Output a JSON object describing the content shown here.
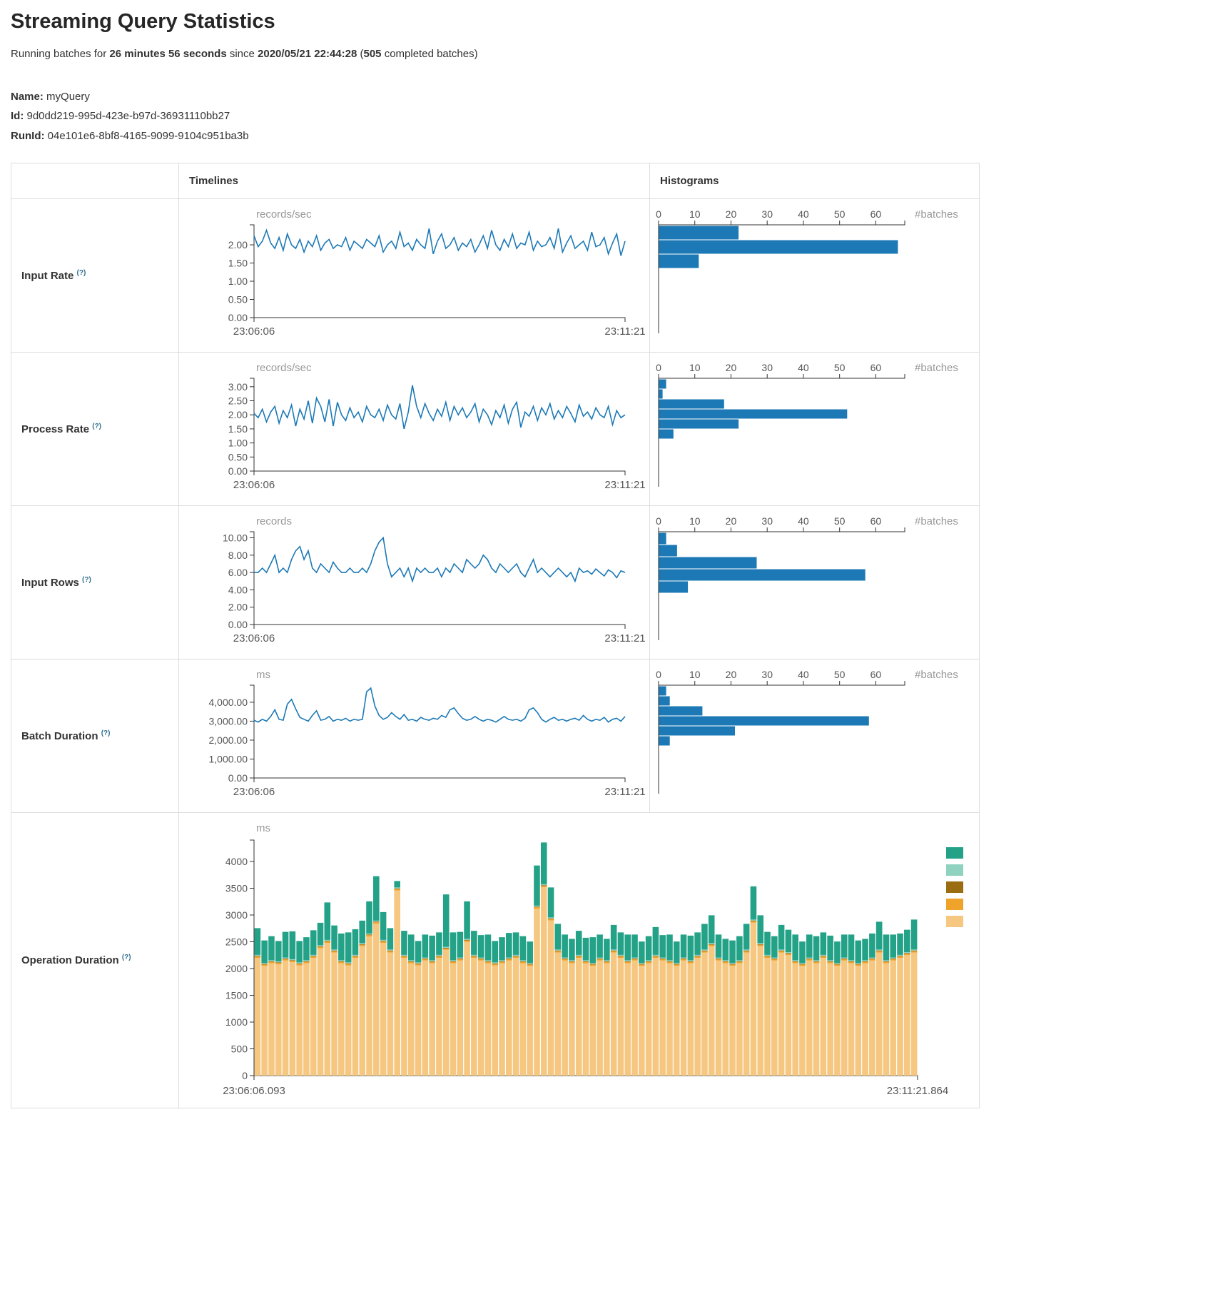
{
  "page": {
    "title": "Streaming Query Statistics",
    "running_prefix": "Running batches for ",
    "duration": "26 minutes 56 seconds",
    "since_text": " since ",
    "start_time": "2020/05/21 22:44:28",
    "paren_open": " (",
    "completed_batches": "505",
    "batches_suffix": " completed batches)",
    "name_label": "Name:",
    "name_value": " myQuery",
    "id_label": "Id:",
    "id_value": " 9d0dd219-995d-423e-b97d-36931110bb27",
    "runid_label": "RunId:",
    "runid_value": " 04e101e6-8bf8-4165-9099-9104c951ba3b"
  },
  "table": {
    "col_timelines": "Timelines",
    "col_histograms": "Histograms",
    "rows": [
      {
        "label": "Input Rate",
        "help": "(?)"
      },
      {
        "label": "Process Rate",
        "help": "(?)"
      },
      {
        "label": "Input Rows",
        "help": "(?)"
      },
      {
        "label": "Batch Duration",
        "help": "(?)"
      },
      {
        "label": "Operation Duration",
        "help": "(?)"
      }
    ]
  },
  "chart_data": {
    "input_rate": {
      "type": "line",
      "unit": "records/sec",
      "x_start": "23:06:06",
      "x_end": "23:11:21",
      "ymax": 2.55,
      "yticks": [
        0,
        0.5,
        1,
        1.5,
        2
      ],
      "ytick_labels": [
        "0.00",
        "0.50",
        "1.00",
        "1.50",
        "2.00"
      ],
      "color": "#1c79b6",
      "values": [
        2.25,
        1.95,
        2.1,
        2.4,
        2.05,
        1.9,
        2.2,
        1.85,
        2.3,
        2.0,
        1.9,
        2.15,
        1.8,
        2.1,
        1.95,
        2.25,
        1.85,
        2.05,
        2.15,
        1.9,
        2.0,
        1.95,
        2.2,
        1.85,
        2.1,
        2.0,
        1.9,
        2.15,
        2.05,
        1.95,
        2.25,
        1.8,
        2.0,
        2.1,
        1.9,
        2.35,
        1.95,
        2.05,
        1.85,
        2.15,
        2.0,
        1.9,
        2.45,
        1.75,
        2.1,
        2.3,
        1.9,
        2.0,
        2.2,
        1.85,
        2.05,
        1.95,
        2.15,
        1.8,
        2.0,
        2.25,
        1.9,
        2.4,
        2.0,
        1.85,
        2.15,
        1.95,
        2.3,
        1.9,
        2.05,
        2.0,
        2.35,
        1.85,
        2.1,
        1.95,
        2.0,
        2.2,
        1.9,
        2.45,
        1.8,
        2.05,
        2.25,
        1.9,
        2.0,
        2.1,
        1.85,
        2.35,
        1.95,
        2.0,
        2.2,
        1.75,
        2.05,
        2.3,
        1.7,
        2.1
      ]
    },
    "input_rate_hist": {
      "type": "histogram",
      "label": "#batches",
      "xticks": [
        0,
        10,
        20,
        30,
        40,
        50,
        60
      ],
      "xmax": 68,
      "color": "#1c79b6",
      "bins": [
        22,
        66,
        11
      ]
    },
    "process_rate": {
      "type": "line",
      "unit": "records/sec",
      "x_start": "23:06:06",
      "x_end": "23:11:21",
      "ymax": 3.3,
      "yticks": [
        0,
        0.5,
        1,
        1.5,
        2,
        2.5,
        3
      ],
      "ytick_labels": [
        "0.00",
        "0.50",
        "1.00",
        "1.50",
        "2.00",
        "2.50",
        "3.00"
      ],
      "color": "#1c79b6",
      "values": [
        2.05,
        1.9,
        2.2,
        1.75,
        2.1,
        2.3,
        1.7,
        2.15,
        1.9,
        2.35,
        1.6,
        2.2,
        1.85,
        2.5,
        1.7,
        2.6,
        2.3,
        1.75,
        2.55,
        1.6,
        2.45,
        2.0,
        1.8,
        2.25,
        1.9,
        2.1,
        1.75,
        2.3,
        2.0,
        1.9,
        2.2,
        1.8,
        2.35,
        2.0,
        1.85,
        2.4,
        1.5,
        2.1,
        3.05,
        2.3,
        1.9,
        2.4,
        2.05,
        1.8,
        2.2,
        1.95,
        2.45,
        1.8,
        2.3,
        2.0,
        2.25,
        1.9,
        2.1,
        2.4,
        1.75,
        2.2,
        2.0,
        1.65,
        2.15,
        1.9,
        2.35,
        1.7,
        2.2,
        2.45,
        1.55,
        2.1,
        1.95,
        2.3,
        1.8,
        2.25,
        2.0,
        2.4,
        1.85,
        2.15,
        1.9,
        2.3,
        2.05,
        1.75,
        2.35,
        1.95,
        2.1,
        1.85,
        2.25,
        2.0,
        1.9,
        2.3,
        1.65,
        2.15,
        1.9,
        2.0
      ]
    },
    "process_rate_hist": {
      "type": "histogram",
      "label": "#batches",
      "xticks": [
        0,
        10,
        20,
        30,
        40,
        50,
        60
      ],
      "xmax": 68,
      "color": "#1c79b6",
      "bins": [
        2,
        1,
        18,
        52,
        22,
        4
      ]
    },
    "input_rows": {
      "type": "line",
      "unit": "records",
      "x_start": "23:06:06",
      "x_end": "23:11:21",
      "ymax": 10.7,
      "yticks": [
        0,
        2,
        4,
        6,
        8,
        10
      ],
      "ytick_labels": [
        "0.00",
        "2.00",
        "4.00",
        "6.00",
        "8.00",
        "10.00"
      ],
      "color": "#1c79b6",
      "values": [
        6,
        6,
        6.5,
        6,
        7,
        8,
        6,
        6.5,
        6,
        7.5,
        8.5,
        9,
        7.5,
        8.5,
        6.5,
        6,
        7,
        6.5,
        6,
        7.2,
        6.5,
        6,
        6,
        6.5,
        6,
        6,
        6.5,
        6,
        7,
        8.5,
        9.5,
        10,
        7,
        5.5,
        6,
        6.5,
        5.5,
        6.5,
        5,
        6.5,
        6,
        6.5,
        6,
        6,
        6.5,
        5.5,
        6.5,
        6,
        7,
        6.5,
        6,
        7.5,
        7,
        6.5,
        7,
        8,
        7.5,
        6.5,
        6,
        7,
        6.5,
        6,
        6.5,
        7,
        6,
        5.5,
        6.5,
        7.5,
        6,
        6.5,
        6,
        5.5,
        6,
        6.5,
        6,
        5.5,
        6,
        5,
        6.5,
        6,
        6.2,
        5.8,
        6.4,
        6,
        5.6,
        6.3,
        6,
        5.4,
        6.2,
        6
      ]
    },
    "input_rows_hist": {
      "type": "histogram",
      "label": "#batches",
      "xticks": [
        0,
        10,
        20,
        30,
        40,
        50,
        60
      ],
      "xmax": 68,
      "color": "#1c79b6",
      "bins": [
        2,
        5,
        27,
        57,
        8
      ]
    },
    "batch_duration": {
      "type": "line",
      "unit": "ms",
      "x_start": "23:06:06",
      "x_end": "23:11:21",
      "ymax": 4900,
      "yticks": [
        0,
        1000,
        2000,
        3000,
        4000
      ],
      "ytick_labels": [
        "0.00",
        "1,000.00",
        "2,000.00",
        "3,000.00",
        "4,000.00"
      ],
      "color": "#1c79b6",
      "values": [
        3050,
        2950,
        3100,
        3000,
        3250,
        3600,
        3100,
        3050,
        3900,
        4150,
        3650,
        3200,
        3100,
        3000,
        3300,
        3550,
        3050,
        3100,
        3250,
        3000,
        3100,
        3050,
        3150,
        3000,
        3100,
        3050,
        3100,
        4550,
        4750,
        3800,
        3300,
        3100,
        3200,
        3450,
        3250,
        3100,
        3350,
        3050,
        3100,
        3000,
        3200,
        3100,
        3050,
        3150,
        3100,
        3300,
        3200,
        3600,
        3700,
        3400,
        3150,
        3050,
        3100,
        3250,
        3100,
        3000,
        3100,
        3050,
        2950,
        3100,
        3250,
        3100,
        3050,
        3100,
        3000,
        3150,
        3600,
        3700,
        3450,
        3100,
        2950,
        3100,
        3200,
        3050,
        3100,
        3000,
        3100,
        3150,
        3050,
        3300,
        3100,
        3000,
        3100,
        3050,
        3200,
        2950,
        3100,
        3150,
        3000,
        3250
      ]
    },
    "batch_duration_hist": {
      "type": "histogram",
      "label": "#batches",
      "xticks": [
        0,
        10,
        20,
        30,
        40,
        50,
        60
      ],
      "xmax": 68,
      "color": "#1c79b6",
      "bins": [
        2,
        3,
        12,
        58,
        21,
        3
      ]
    },
    "operation_duration": {
      "type": "stacked-bar",
      "unit": "ms",
      "x_start": "23:06:06.093",
      "x_end": "23:11:21.864",
      "ymax": 4400,
      "yticks": [
        0,
        500,
        1000,
        1500,
        2000,
        2500,
        3000,
        3500,
        4000
      ],
      "ytick_labels": [
        "0",
        "500",
        "1000",
        "1500",
        "2000",
        "2500",
        "3000",
        "3500",
        "4000"
      ],
      "legend_colors": [
        "#23a288",
        "#8fd2c0",
        "#9a6d10",
        "#f0a32a",
        "#f6c780"
      ],
      "series": [
        {
          "name": "tan",
          "color": "#f6c780",
          "values": [
            2200,
            2050,
            2100,
            2080,
            2150,
            2120,
            2060,
            2100,
            2200,
            2380,
            2480,
            2300,
            2100,
            2060,
            2200,
            2420,
            2600,
            2840,
            2480,
            2300,
            3460,
            2200,
            2100,
            2060,
            2150,
            2100,
            2200,
            2350,
            2100,
            2150,
            2500,
            2200,
            2150,
            2100,
            2060,
            2100,
            2150,
            2200,
            2100,
            2050,
            3120,
            3520,
            2900,
            2300,
            2150,
            2100,
            2200,
            2100,
            2050,
            2150,
            2100,
            2300,
            2200,
            2100,
            2150,
            2050,
            2100,
            2200,
            2150,
            2100,
            2050,
            2150,
            2100,
            2200,
            2300,
            2420,
            2150,
            2100,
            2050,
            2100,
            2300,
            2860,
            2420,
            2200,
            2150,
            2300,
            2250,
            2100,
            2050,
            2150,
            2100,
            2200,
            2100,
            2050,
            2150,
            2100,
            2050,
            2100,
            2150,
            2300,
            2100,
            2150,
            2200,
            2250,
            2300
          ]
        },
        {
          "name": "orange",
          "color": "#f0a32a",
          "const": 25
        },
        {
          "name": "olive",
          "color": "#9a6d10",
          "const": 12
        },
        {
          "name": "light-teal",
          "color": "#8fd2c0",
          "const": 18
        },
        {
          "name": "teal",
          "color": "#23a288",
          "values": [
            500,
            420,
            450,
            380,
            480,
            520,
            400,
            430,
            460,
            420,
            700,
            450,
            500,
            560,
            480,
            420,
            600,
            830,
            520,
            400,
            120,
            450,
            480,
            400,
            430,
            460,
            420,
            980,
            520,
            480,
            700,
            450,
            420,
            480,
            400,
            430,
            460,
            420,
            450,
            400,
            750,
            780,
            560,
            480,
            430,
            400,
            450,
            420,
            480,
            430,
            400,
            460,
            420,
            480,
            430,
            400,
            450,
            520,
            420,
            480,
            400,
            430,
            460,
            420,
            480,
            520,
            430,
            400,
            420,
            450,
            480,
            620,
            520,
            430,
            400,
            460,
            420,
            480,
            400,
            430,
            450,
            420,
            460,
            400,
            430,
            480,
            420,
            400,
            450,
            520,
            480,
            430,
            400,
            420,
            560
          ]
        }
      ]
    }
  }
}
